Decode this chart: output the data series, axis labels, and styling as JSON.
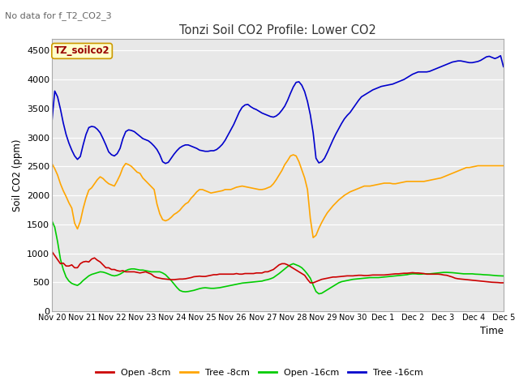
{
  "title": "Tonzi Soil CO2 Profile: Lower CO2",
  "no_data_label": "No data for f_T2_CO2_3",
  "dataset_label": "TZ_soilco2",
  "ylabel": "Soil CO2 (ppm)",
  "xlabel": "Time",
  "ylim": [
    0,
    4700
  ],
  "yticks": [
    0,
    500,
    1000,
    1500,
    2000,
    2500,
    3000,
    3500,
    4000,
    4500
  ],
  "xtick_labels": [
    "Nov 20",
    "Nov 21",
    "Nov 22",
    "Nov 23",
    "Nov 24",
    "Nov 25",
    "Nov 26",
    "Nov 27",
    "Nov 28",
    "Nov 29",
    "Nov 30",
    "Dec 1",
    "Dec 2",
    "Dec 3",
    "Dec 4",
    "Dec 5"
  ],
  "fig_bg_color": "#ffffff",
  "plot_bg_color": "#e8e8e8",
  "grid_color": "#ffffff",
  "legend": [
    {
      "label": "Open -8cm",
      "color": "#cc0000"
    },
    {
      "label": "Tree -8cm",
      "color": "#ffa500"
    },
    {
      "label": "Open -16cm",
      "color": "#00cc00"
    },
    {
      "label": "Tree -16cm",
      "color": "#0000cc"
    }
  ],
  "series": {
    "open_8cm": [
      1030,
      960,
      890,
      820,
      830,
      780,
      780,
      800,
      750,
      750,
      820,
      850,
      860,
      850,
      900,
      920,
      880,
      850,
      800,
      750,
      750,
      720,
      720,
      700,
      690,
      700,
      680,
      680,
      680,
      680,
      670,
      660,
      670,
      680,
      660,
      640,
      600,
      580,
      570,
      560,
      555,
      550,
      545,
      545,
      550,
      555,
      555,
      560,
      570,
      580,
      595,
      600,
      605,
      600,
      600,
      610,
      620,
      630,
      630,
      640,
      640,
      640,
      640,
      640,
      640,
      650,
      640,
      640,
      650,
      650,
      650,
      650,
      660,
      660,
      660,
      680,
      680,
      700,
      720,
      760,
      800,
      820,
      820,
      800,
      770,
      740,
      710,
      680,
      650,
      620,
      550,
      490,
      490,
      510,
      530,
      550,
      560,
      570,
      580,
      590,
      590,
      595,
      600,
      605,
      610,
      610,
      610,
      615,
      620,
      620,
      615,
      615,
      620,
      625,
      625,
      625,
      625,
      625,
      630,
      635,
      640,
      645,
      645,
      650,
      655,
      655,
      660,
      665,
      660,
      660,
      655,
      650,
      640,
      640,
      640,
      640,
      640,
      635,
      625,
      620,
      605,
      590,
      570,
      560,
      555,
      550,
      545,
      540,
      535,
      530,
      525,
      520,
      515,
      510,
      505,
      500,
      498,
      495,
      490,
      490
    ],
    "tree_8cm": [
      2550,
      2460,
      2350,
      2200,
      2080,
      1980,
      1870,
      1780,
      1520,
      1420,
      1550,
      1770,
      1950,
      2090,
      2130,
      2200,
      2270,
      2320,
      2290,
      2240,
      2200,
      2180,
      2160,
      2250,
      2350,
      2480,
      2550,
      2530,
      2500,
      2450,
      2400,
      2380,
      2300,
      2250,
      2200,
      2150,
      2100,
      1850,
      1680,
      1580,
      1560,
      1580,
      1620,
      1670,
      1700,
      1740,
      1800,
      1850,
      1880,
      1950,
      2000,
      2060,
      2100,
      2100,
      2080,
      2060,
      2040,
      2050,
      2060,
      2070,
      2080,
      2100,
      2100,
      2100,
      2120,
      2140,
      2150,
      2160,
      2150,
      2140,
      2130,
      2120,
      2110,
      2100,
      2100,
      2110,
      2130,
      2150,
      2200,
      2270,
      2350,
      2430,
      2530,
      2600,
      2680,
      2700,
      2680,
      2580,
      2440,
      2300,
      2100,
      1600,
      1270,
      1310,
      1430,
      1530,
      1620,
      1700,
      1760,
      1820,
      1870,
      1920,
      1960,
      2000,
      2030,
      2060,
      2080,
      2100,
      2120,
      2140,
      2160,
      2160,
      2160,
      2170,
      2180,
      2190,
      2200,
      2210,
      2210,
      2210,
      2200,
      2200,
      2210,
      2220,
      2230,
      2240,
      2240,
      2240,
      2240,
      2240,
      2240,
      2240,
      2250,
      2260,
      2270,
      2280,
      2290,
      2300,
      2320,
      2340,
      2360,
      2380,
      2400,
      2420,
      2440,
      2460,
      2480,
      2480,
      2490,
      2500,
      2510,
      2510,
      2510,
      2510,
      2510,
      2510,
      2510,
      2510,
      2510,
      2510
    ],
    "open_16cm": [
      1560,
      1450,
      1200,
      900,
      720,
      590,
      520,
      480,
      460,
      445,
      480,
      530,
      570,
      610,
      635,
      650,
      665,
      680,
      675,
      660,
      640,
      620,
      610,
      620,
      640,
      670,
      700,
      720,
      730,
      730,
      720,
      710,
      710,
      700,
      690,
      680,
      680,
      680,
      680,
      660,
      630,
      580,
      530,
      470,
      410,
      360,
      340,
      335,
      340,
      350,
      360,
      375,
      390,
      400,
      405,
      400,
      395,
      395,
      400,
      405,
      415,
      425,
      435,
      445,
      455,
      465,
      475,
      485,
      490,
      495,
      500,
      505,
      510,
      515,
      520,
      535,
      545,
      560,
      580,
      615,
      650,
      690,
      730,
      770,
      800,
      820,
      800,
      780,
      750,
      700,
      640,
      570,
      450,
      340,
      300,
      310,
      340,
      370,
      400,
      430,
      460,
      490,
      510,
      520,
      530,
      540,
      550,
      555,
      560,
      565,
      570,
      575,
      580,
      580,
      580,
      580,
      585,
      590,
      595,
      600,
      605,
      610,
      615,
      620,
      625,
      630,
      640,
      645,
      645,
      640,
      640,
      645,
      645,
      645,
      650,
      655,
      660,
      665,
      670,
      670,
      668,
      665,
      660,
      655,
      650,
      645,
      645,
      645,
      645,
      640,
      638,
      635,
      630,
      628,
      625,
      620,
      616,
      612,
      610,
      608
    ],
    "tree_16cm": [
      3270,
      3800,
      3700,
      3490,
      3250,
      3050,
      2900,
      2780,
      2680,
      2620,
      2670,
      2870,
      3050,
      3170,
      3190,
      3180,
      3140,
      3080,
      2980,
      2870,
      2750,
      2700,
      2680,
      2720,
      2810,
      2980,
      3100,
      3130,
      3120,
      3100,
      3060,
      3020,
      2980,
      2960,
      2940,
      2900,
      2850,
      2790,
      2700,
      2580,
      2550,
      2570,
      2640,
      2710,
      2770,
      2820,
      2850,
      2870,
      2870,
      2850,
      2830,
      2810,
      2780,
      2770,
      2760,
      2760,
      2770,
      2770,
      2790,
      2830,
      2880,
      2950,
      3040,
      3130,
      3220,
      3330,
      3440,
      3520,
      3560,
      3570,
      3530,
      3500,
      3480,
      3450,
      3420,
      3400,
      3380,
      3360,
      3350,
      3370,
      3410,
      3470,
      3540,
      3640,
      3760,
      3870,
      3950,
      3960,
      3900,
      3790,
      3620,
      3390,
      3080,
      2640,
      2560,
      2580,
      2640,
      2740,
      2850,
      2960,
      3060,
      3150,
      3240,
      3320,
      3380,
      3430,
      3500,
      3570,
      3640,
      3700,
      3730,
      3760,
      3790,
      3820,
      3840,
      3860,
      3880,
      3890,
      3900,
      3910,
      3920,
      3940,
      3960,
      3980,
      4000,
      4030,
      4060,
      4090,
      4110,
      4130,
      4130,
      4130,
      4130,
      4140,
      4160,
      4180,
      4200,
      4220,
      4240,
      4260,
      4280,
      4300,
      4310,
      4320,
      4320,
      4310,
      4300,
      4290,
      4290,
      4300,
      4310,
      4330,
      4360,
      4390,
      4400,
      4380,
      4360,
      4380,
      4410,
      4220
    ]
  }
}
